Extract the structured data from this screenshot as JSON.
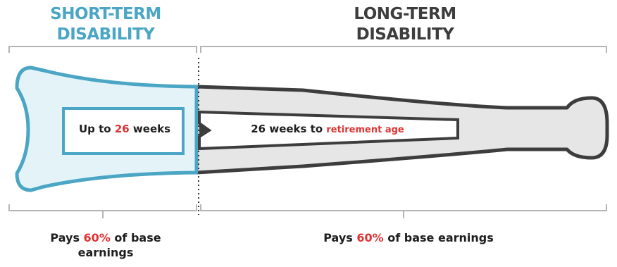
{
  "short_term": {
    "title_line1": "SHORT-TERM",
    "title_line2": "DISABILITY",
    "duration_prefix": "Up to ",
    "duration_value": "26",
    "duration_suffix": " weeks",
    "pays_prefix": "Pays ",
    "pays_percent": "60%",
    "pays_suffix_line1": " of base",
    "pays_line2": "earnings"
  },
  "long_term": {
    "title_line1": "LONG-TERM",
    "title_line2": "DISABILITY",
    "duration_prefix": "26 weeks to ",
    "duration_highlight": "retirement age",
    "pays_prefix": "Pays ",
    "pays_percent": "60%",
    "pays_suffix": " of base earnings"
  },
  "colors": {
    "short_accent": "#4aa6c4",
    "short_fill": "#e4f3f8",
    "long_stroke": "#3d3d3d",
    "long_fill": "#e6e6e6",
    "highlight": "#e03232",
    "bracket": "#b5b5b5"
  }
}
